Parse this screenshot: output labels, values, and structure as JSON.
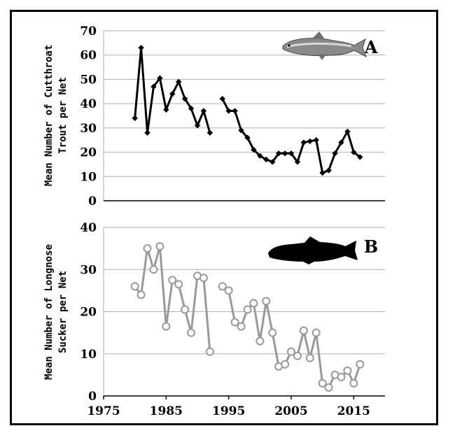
{
  "chart_data": [
    {
      "type": "line",
      "panel_label": "A",
      "ylabel_lines": [
        "Mean Number of Cutthroat",
        "Trout per Net"
      ],
      "icon": "trout-icon",
      "color": "#000000",
      "marker": "diamond",
      "xlim": [
        1975,
        2020
      ],
      "ylim": [
        0,
        70
      ],
      "yticks": [
        "0",
        "10",
        "20",
        "30",
        "40",
        "50",
        "60",
        "70"
      ],
      "grid": true,
      "segments": [
        {
          "x": [
            1980,
            1981,
            1982,
            1983,
            1984,
            1985,
            1986,
            1987,
            1988,
            1989,
            1990,
            1991,
            1992
          ],
          "y": [
            34,
            63,
            28,
            47,
            50.5,
            37.5,
            44,
            49,
            42,
            38,
            31,
            37,
            28
          ]
        },
        {
          "x": [
            1994,
            1995,
            1996,
            1997,
            1998,
            1999,
            2000,
            2001,
            2002,
            2003,
            2004,
            2005,
            2006,
            2007,
            2008,
            2009,
            2010,
            2011,
            2012,
            2013,
            2014,
            2015,
            2016
          ],
          "y": [
            42,
            37,
            37,
            29,
            26,
            21,
            18.5,
            17,
            16,
            19.5,
            19.5,
            19.5,
            16,
            24,
            24.5,
            25,
            11.5,
            12.5,
            19.5,
            24,
            28.5,
            20,
            18
          ]
        }
      ]
    },
    {
      "type": "line",
      "panel_label": "B",
      "ylabel_lines": [
        "Mean Number of Longnose",
        "Sucker per Net"
      ],
      "icon": "longnose-sucker-icon",
      "color": "#999999",
      "marker": "circle",
      "xlim": [
        1975,
        2020
      ],
      "ylim": [
        0,
        40
      ],
      "yticks": [
        "0",
        "10",
        "20",
        "30",
        "40"
      ],
      "xticks": [
        "1975",
        "1985",
        "1995",
        "2005",
        "2015"
      ],
      "grid": true,
      "segments": [
        {
          "x": [
            1980,
            1981,
            1982,
            1983,
            1984,
            1985,
            1986,
            1987,
            1988,
            1989,
            1990,
            1991,
            1992
          ],
          "y": [
            26,
            24,
            35,
            30,
            35.5,
            16.5,
            27.5,
            26.5,
            20.5,
            15,
            28.5,
            28,
            10.5
          ]
        },
        {
          "x": [
            1994,
            1995,
            1996,
            1997,
            1998,
            1999,
            2000,
            2001,
            2002,
            2003,
            2004,
            2005,
            2006,
            2007,
            2008,
            2009,
            2010,
            2011,
            2012,
            2013,
            2014,
            2015,
            2016
          ],
          "y": [
            26,
            25,
            17.5,
            16.5,
            20.5,
            22,
            13,
            22.5,
            15,
            7,
            7.5,
            10.5,
            9.5,
            15.5,
            9,
            15,
            3,
            2,
            5,
            4.5,
            6,
            3,
            7.5
          ]
        }
      ]
    }
  ]
}
